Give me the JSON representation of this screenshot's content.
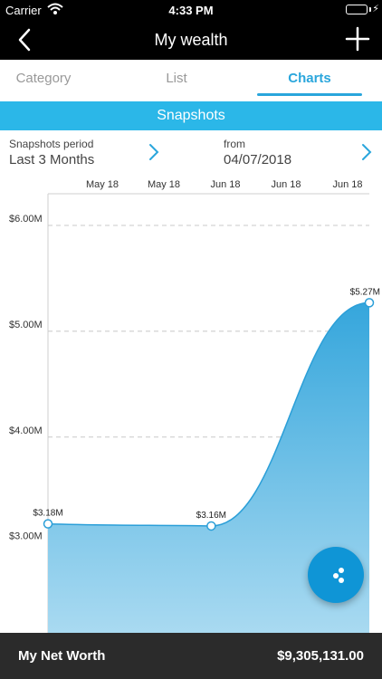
{
  "status_bar": {
    "carrier": "Carrier",
    "time": "4:33 PM"
  },
  "nav": {
    "title": "My wealth"
  },
  "tabs": [
    {
      "label": "Category",
      "active": false
    },
    {
      "label": "List",
      "active": false
    },
    {
      "label": "Charts",
      "active": true
    }
  ],
  "section": {
    "title": "Snapshots"
  },
  "period": {
    "label": "Snapshots period",
    "value": "Last 3 Months",
    "from_label": "from",
    "from_value": "04/07/2018"
  },
  "chart_data": {
    "type": "area",
    "title": "",
    "xlabel": "",
    "ylabel": "",
    "x_tick_labels": [
      "May 18",
      "May 18",
      "Jun 18",
      "Jun 18",
      "Jun 18"
    ],
    "y_tick_labels": [
      "$6.00M",
      "$5.00M",
      "$4.00M",
      "$3.00M"
    ],
    "y_ticks": [
      6.0,
      5.0,
      4.0,
      3.0
    ],
    "ylim": [
      2.15,
      6.3
    ],
    "grid": true,
    "points": [
      {
        "x": 0,
        "y": 3.18,
        "label": "$3.18M"
      },
      {
        "x": 1,
        "y": 3.16,
        "label": "$3.16M"
      },
      {
        "x": 2,
        "y": 5.27,
        "label": "$5.27M"
      }
    ],
    "colors": {
      "line": "#2b9fd8",
      "fill_top": "#35a6dc",
      "fill_bottom": "#a9daf1",
      "grid": "#c8c8c8"
    }
  },
  "footer": {
    "label": "My Net Worth",
    "value": "$9,305,131.00"
  },
  "icons": {
    "back": "chevron-left-icon",
    "add": "plus-icon",
    "wifi": "wifi-icon",
    "battery": "battery-icon",
    "fab": "share-icon"
  }
}
